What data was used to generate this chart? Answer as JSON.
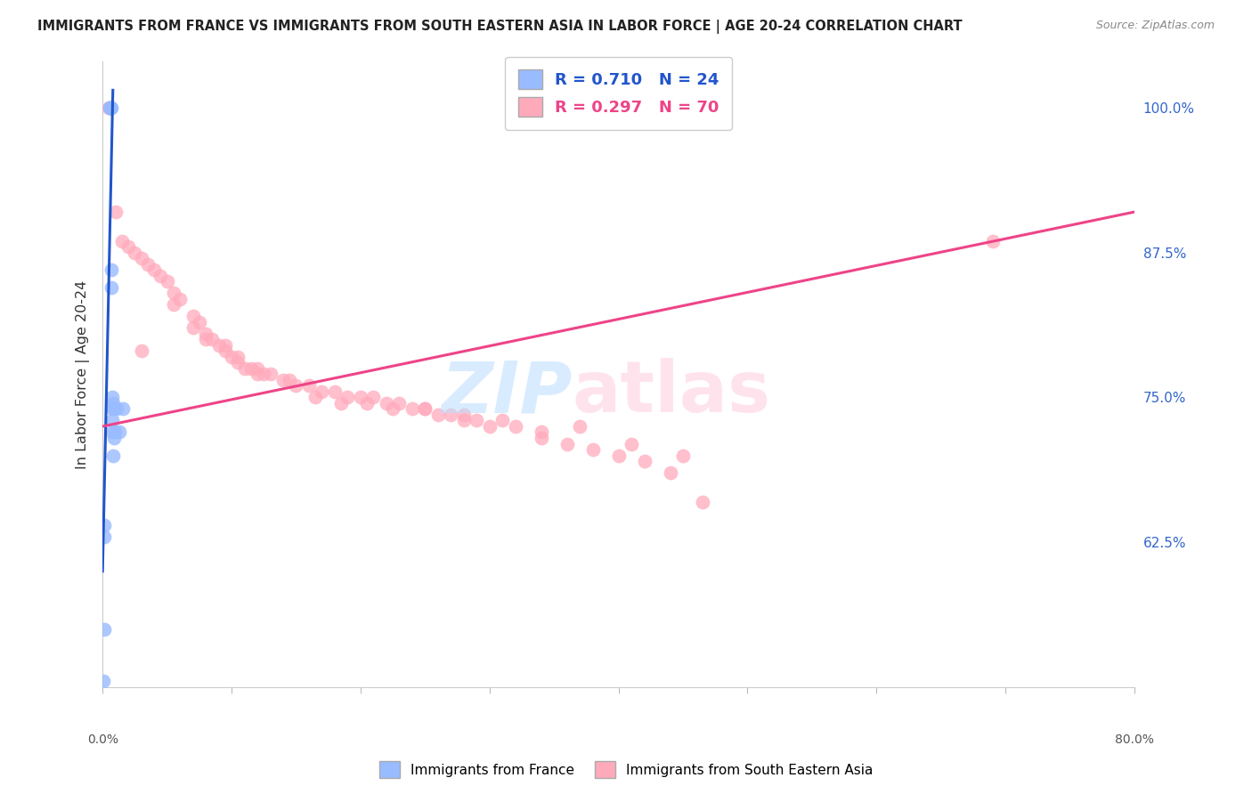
{
  "title": "IMMIGRANTS FROM FRANCE VS IMMIGRANTS FROM SOUTH EASTERN ASIA IN LABOR FORCE | AGE 20-24 CORRELATION CHART",
  "source": "Source: ZipAtlas.com",
  "ylabel": "In Labor Force | Age 20-24",
  "xlim": [
    0.0,
    80.0
  ],
  "ylim": [
    50.0,
    104.0
  ],
  "y_ticks_right": [
    62.5,
    75.0,
    87.5,
    100.0
  ],
  "france_R": 0.71,
  "france_N": 24,
  "sea_R": 0.297,
  "sea_N": 70,
  "france_color": "#99bbff",
  "sea_color": "#ffaabb",
  "france_line_color": "#2255cc",
  "sea_line_color": "#ee4488",
  "france_scatter_x": [
    0.08,
    0.12,
    0.55,
    0.58,
    0.6,
    0.62,
    0.63,
    0.65,
    0.68,
    0.7,
    0.72,
    0.73,
    0.75,
    0.78,
    0.8,
    0.82,
    0.85,
    0.9,
    0.95,
    1.1,
    1.3,
    1.6,
    0.1,
    0.15
  ],
  "france_scatter_y": [
    50.5,
    55.0,
    100.0,
    100.0,
    100.0,
    100.0,
    100.0,
    100.0,
    86.0,
    84.5,
    75.0,
    74.0,
    73.0,
    72.0,
    74.5,
    70.0,
    71.5,
    74.0,
    72.0,
    74.0,
    72.0,
    74.0,
    64.0,
    63.0
  ],
  "sea_scatter_x": [
    0.5,
    1.0,
    1.5,
    2.0,
    2.5,
    3.0,
    3.5,
    4.0,
    4.5,
    5.0,
    5.5,
    6.0,
    7.0,
    7.5,
    8.0,
    8.5,
    9.0,
    9.5,
    10.0,
    10.5,
    11.0,
    11.5,
    12.0,
    12.5,
    13.0,
    14.0,
    15.0,
    16.0,
    17.0,
    18.0,
    19.0,
    20.0,
    21.0,
    22.0,
    23.0,
    24.0,
    25.0,
    26.0,
    27.0,
    28.0,
    29.0,
    30.0,
    32.0,
    34.0,
    36.0,
    38.0,
    40.0,
    42.0,
    44.0,
    46.5,
    3.0,
    5.5,
    7.0,
    8.0,
    9.5,
    10.5,
    12.0,
    14.5,
    16.5,
    18.5,
    20.5,
    22.5,
    25.0,
    28.0,
    31.0,
    34.0,
    37.0,
    41.0,
    45.0,
    69.0
  ],
  "sea_scatter_y": [
    100.0,
    91.0,
    88.5,
    88.0,
    87.5,
    87.0,
    86.5,
    86.0,
    85.5,
    85.0,
    84.0,
    83.5,
    82.0,
    81.5,
    80.5,
    80.0,
    79.5,
    79.0,
    78.5,
    78.0,
    77.5,
    77.5,
    77.5,
    77.0,
    77.0,
    76.5,
    76.0,
    76.0,
    75.5,
    75.5,
    75.0,
    75.0,
    75.0,
    74.5,
    74.5,
    74.0,
    74.0,
    73.5,
    73.5,
    73.0,
    73.0,
    72.5,
    72.5,
    71.5,
    71.0,
    70.5,
    70.0,
    69.5,
    68.5,
    66.0,
    79.0,
    83.0,
    81.0,
    80.0,
    79.5,
    78.5,
    77.0,
    76.5,
    75.0,
    74.5,
    74.5,
    74.0,
    74.0,
    73.5,
    73.0,
    72.0,
    72.5,
    71.0,
    70.0,
    88.5
  ],
  "france_line_x0": 0.0,
  "france_line_y0": 60.0,
  "france_line_x1": 0.8,
  "france_line_y1": 101.5,
  "sea_line_x0": 0.0,
  "sea_line_y0": 72.5,
  "sea_line_x1": 80.0,
  "sea_line_y1": 91.0,
  "watermark_zip_color": "#bbddff",
  "watermark_atlas_color": "#ffccdd"
}
